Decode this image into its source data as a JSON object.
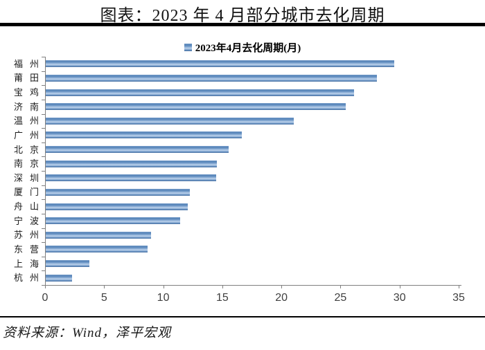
{
  "title": "图表：2023 年 4 月部分城市去化周期",
  "source": "资料来源：Wind，泽平宏观",
  "colors": {
    "bar_main": "#5181b6",
    "bar_highlight": "#bed1ea",
    "axis": "#7f7f7f",
    "divider": "#000000"
  },
  "chart_data": {
    "type": "bar",
    "orientation": "horizontal",
    "legend": "2023年4月去化周期(月)",
    "legend_position": "top",
    "categories": [
      "福州",
      "莆田",
      "宝鸡",
      "济南",
      "温州",
      "广州",
      "北京",
      "南京",
      "深圳",
      "厦门",
      "舟山",
      "宁波",
      "苏州",
      "东营",
      "上海",
      "杭州"
    ],
    "values": [
      29.5,
      28.0,
      26.1,
      25.4,
      21.0,
      16.6,
      15.5,
      14.5,
      14.4,
      12.2,
      12.0,
      11.4,
      8.9,
      8.6,
      3.7,
      2.2
    ],
    "xlabel": "",
    "ylabel": "",
    "xlim": [
      0,
      35
    ],
    "xticks": [
      0,
      5,
      10,
      15,
      20,
      25,
      30,
      35
    ],
    "grid": false
  }
}
